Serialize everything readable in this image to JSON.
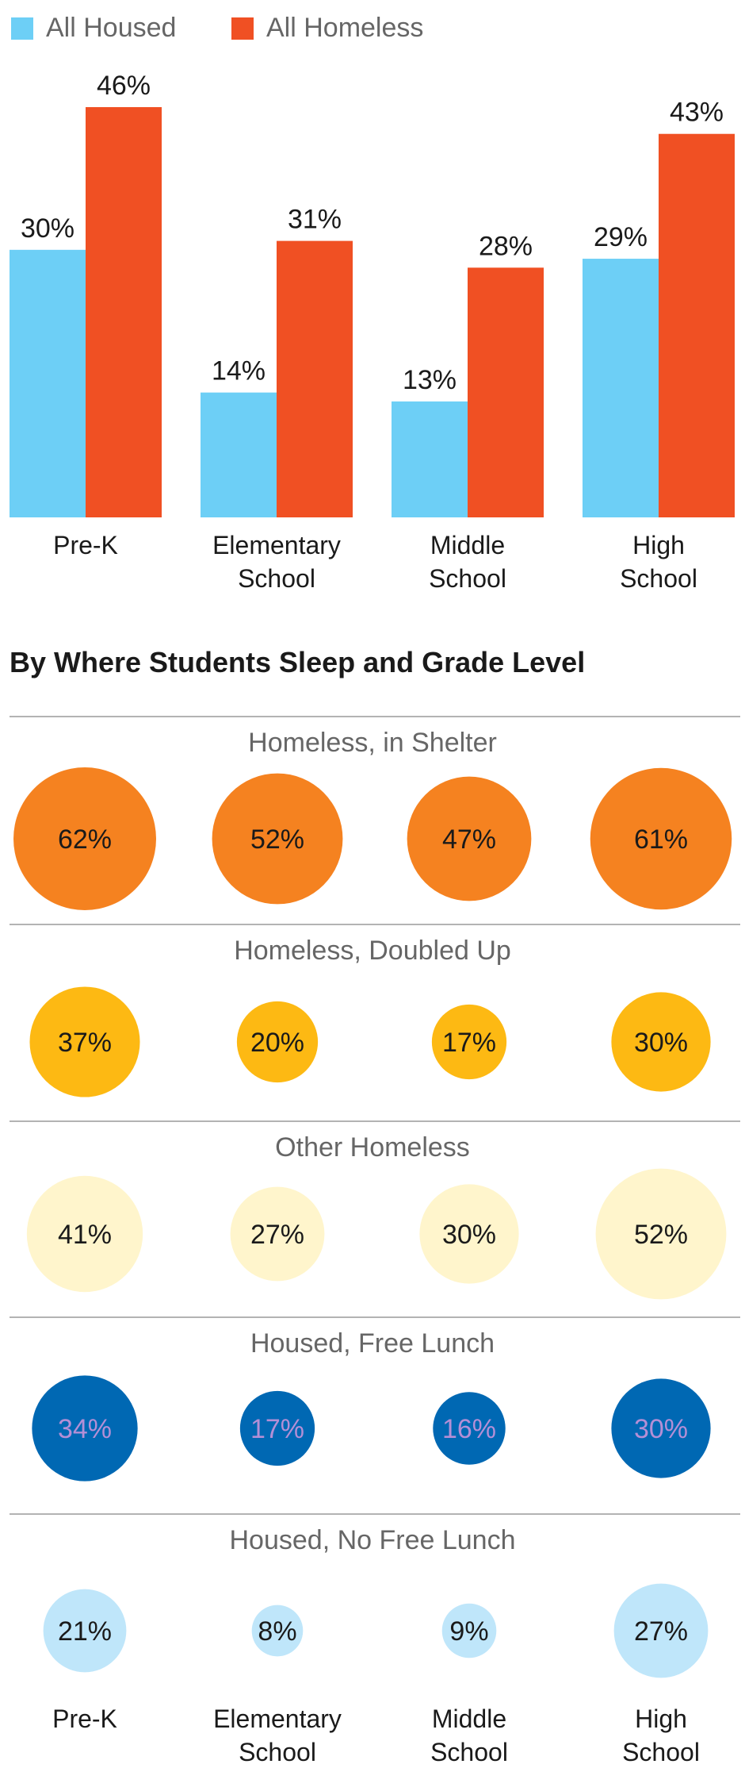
{
  "colors": {
    "housed": "#6dcff6",
    "homeless": "#f05023",
    "axis_text": "#1a1a1a",
    "legend_text": "#666666",
    "section_title": "#1a1a1a",
    "row_title": "#666666",
    "divider": "#b3b3b3"
  },
  "chart_data": [
    {
      "type": "bar",
      "categories": [
        "Pre-K",
        "Elementary School",
        "Middle School",
        "High School"
      ],
      "category_lines": [
        [
          "Pre-K"
        ],
        [
          "Elementary",
          "School"
        ],
        [
          "Middle",
          "School"
        ],
        [
          "High",
          "School"
        ]
      ],
      "series": [
        {
          "name": "All Housed",
          "color": "#6dcff6",
          "values": [
            30,
            14,
            13,
            29
          ],
          "labels": [
            "30%",
            "14%",
            "13%",
            "29%"
          ]
        },
        {
          "name": "All Homeless",
          "color": "#f05023",
          "values": [
            46,
            31,
            28,
            43
          ],
          "labels": [
            "46%",
            "31%",
            "28%",
            "43%"
          ]
        }
      ],
      "legend": "top-left",
      "ylim": [
        0,
        46
      ]
    },
    {
      "type": "pie",
      "title": "By Where Students Sleep and Grade Level",
      "categories": [
        "Pre-K",
        "Elementary School",
        "Middle School",
        "High School"
      ],
      "category_lines": [
        [
          "Pre-K"
        ],
        [
          "Elementary",
          "School"
        ],
        [
          "Middle",
          "School"
        ],
        [
          "High",
          "School"
        ]
      ],
      "rows": [
        {
          "name": "Homeless, in Shelter",
          "color": "#f58220",
          "text_color": "#1a1a1a",
          "values": [
            62,
            52,
            47,
            61
          ],
          "labels": [
            "62%",
            "52%",
            "47%",
            "61%"
          ]
        },
        {
          "name": "Homeless, Doubled Up",
          "color": "#fdb913",
          "text_color": "#1a1a1a",
          "values": [
            37,
            20,
            17,
            30
          ],
          "labels": [
            "37%",
            "20%",
            "17%",
            "30%"
          ]
        },
        {
          "name": "Other Homeless",
          "color": "#fff5cc",
          "text_color": "#1a1a1a",
          "values": [
            41,
            27,
            30,
            52
          ],
          "labels": [
            "41%",
            "27%",
            "30%",
            "52%"
          ]
        },
        {
          "name": "Housed, Free Lunch",
          "color": "#0068b3",
          "text_color": "#b48fd6",
          "values": [
            34,
            17,
            16,
            30
          ],
          "labels": [
            "34%",
            "17%",
            "16%",
            "30%"
          ]
        },
        {
          "name": "Housed, No Free Lunch",
          "color": "#bfe6fa",
          "text_color": "#1a1a1a",
          "values": [
            21,
            8,
            9,
            27
          ],
          "labels": [
            "21%",
            "8%",
            "9%",
            "27%"
          ]
        }
      ]
    }
  ]
}
